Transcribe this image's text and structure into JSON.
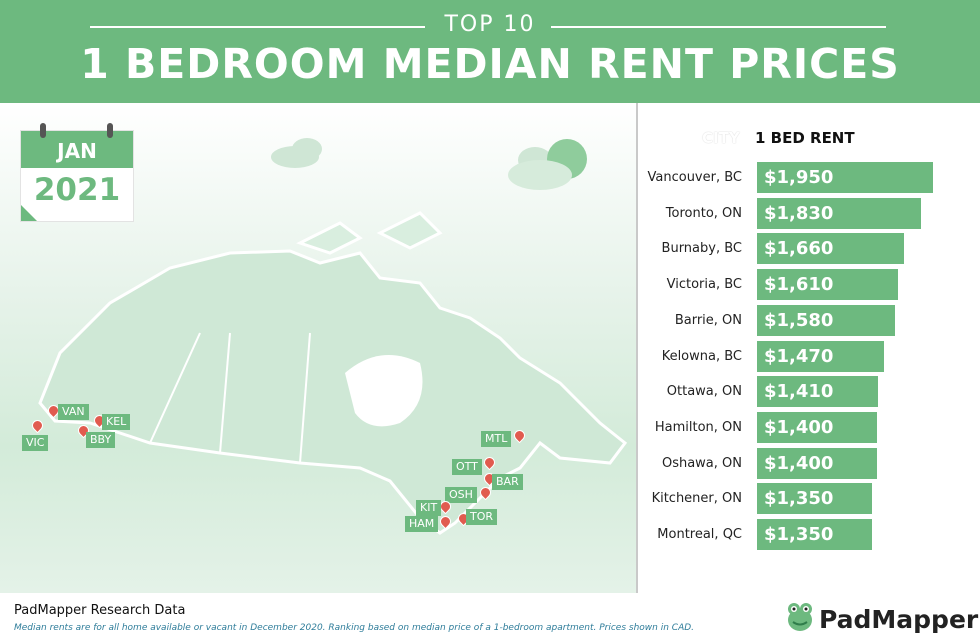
{
  "header": {
    "subtitle": "TOP 10",
    "title": "1 BEDROOM MEDIAN RENT PRICES"
  },
  "calendar": {
    "month": "JAN",
    "year": "2021"
  },
  "chart_data": {
    "type": "bar",
    "title": "1 BEDROOM MEDIAN RENT PRICES",
    "column_headers": {
      "city": "CITY",
      "rent": "1 BED RENT"
    },
    "categories": [
      "Vancouver, BC",
      "Toronto, ON",
      "Burnaby, BC",
      "Victoria, BC",
      "Barrie, ON",
      "Kelowna, BC",
      "Ottawa, ON",
      "Hamilton, ON",
      "Oshawa, ON",
      "Kitchener, ON",
      "Montreal, QC"
    ],
    "values": [
      1950,
      1830,
      1660,
      1610,
      1580,
      1470,
      1410,
      1400,
      1400,
      1350,
      1350
    ],
    "value_labels": [
      "$1,950",
      "$1,830",
      "$1,660",
      "$1,610",
      "$1,580",
      "$1,470",
      "$1,410",
      "$1,400",
      "$1,400",
      "$1,350",
      "$1,350"
    ],
    "bar_color": "#6db97f"
  },
  "map": {
    "pins": [
      "VAN",
      "KEL",
      "VIC",
      "BBY",
      "MTL",
      "OTT",
      "BAR",
      "OSH",
      "KIT",
      "TOR",
      "HAM"
    ],
    "pin_color": "#e15b4f",
    "label_color": "#6db97f"
  },
  "footer": {
    "title": "PadMapper Research Data",
    "note": "Median rents are for all home available or vacant in December 2020. Ranking based on median price of a 1-bedroom apartment. Prices shown in CAD.",
    "brand": "PadMapper"
  }
}
